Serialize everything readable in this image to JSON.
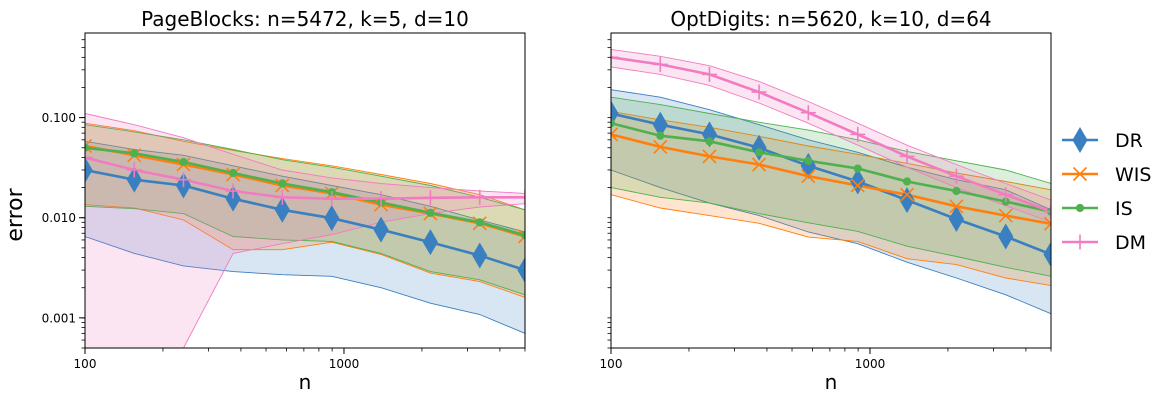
{
  "shared": {
    "ylabel": "error",
    "xlabel": "n"
  },
  "legend": {
    "placement": "right",
    "items": [
      {
        "name": "DR",
        "color": "#3a7fbf",
        "marker": "diamond"
      },
      {
        "name": "WIS",
        "color": "#ff7f0e",
        "marker": "x"
      },
      {
        "name": "IS",
        "color": "#4fb04f",
        "marker": "circle"
      },
      {
        "name": "DM",
        "color": "#f17cc2",
        "marker": "plus"
      }
    ]
  },
  "chart_data": [
    {
      "type": "line",
      "title": "PageBlocks: n=5472, k=5, d=10",
      "xlabel": "n",
      "ylabel": "error",
      "xscale": "log",
      "yscale": "log",
      "xlim": [
        100,
        5000
      ],
      "ylim": [
        0.0005,
        0.7
      ],
      "xticks": [
        {
          "value": 100,
          "label": "100"
        },
        {
          "value": 1000,
          "label": "1000"
        }
      ],
      "yticks": [
        {
          "value": 0.001,
          "label": "0.001"
        },
        {
          "value": 0.01,
          "label": "0.010"
        },
        {
          "value": 0.1,
          "label": "0.100"
        }
      ],
      "grid": false,
      "x": [
        100,
        155,
        240,
        373,
        578,
        897,
        1390,
        2156,
        3344,
        5000
      ],
      "series": [
        {
          "name": "DR",
          "color": "#3a7fbf",
          "marker": "diamond",
          "values": [
            0.03,
            0.024,
            0.021,
            0.0155,
            0.012,
            0.0099,
            0.0076,
            0.0057,
            0.0042,
            0.003
          ],
          "lower": [
            0.0065,
            0.0044,
            0.0033,
            0.0029,
            0.0027,
            0.0026,
            0.002,
            0.0014,
            0.00108,
            0.0007
          ],
          "upper": [
            0.058,
            0.048,
            0.042,
            0.033,
            0.026,
            0.021,
            0.017,
            0.013,
            0.0095,
            0.0072
          ]
        },
        {
          "name": "WIS",
          "color": "#ff7f0e",
          "marker": "x",
          "values": [
            0.052,
            0.042,
            0.034,
            0.027,
            0.021,
            0.0175,
            0.0135,
            0.011,
            0.0088,
            0.0065
          ],
          "lower": [
            0.0135,
            0.0125,
            0.0095,
            0.0048,
            0.0048,
            0.0057,
            0.0043,
            0.0028,
            0.0023,
            0.0016
          ],
          "upper": [
            0.088,
            0.074,
            0.058,
            0.047,
            0.039,
            0.033,
            0.027,
            0.022,
            0.017,
            0.012
          ]
        },
        {
          "name": "IS",
          "color": "#4fb04f",
          "marker": "circle",
          "values": [
            0.05,
            0.044,
            0.036,
            0.028,
            0.022,
            0.018,
            0.0142,
            0.0112,
            0.009,
            0.0067
          ],
          "lower": [
            0.013,
            0.0123,
            0.011,
            0.0065,
            0.006,
            0.0058,
            0.0044,
            0.0029,
            0.0024,
            0.0017
          ],
          "upper": [
            0.085,
            0.072,
            0.06,
            0.048,
            0.038,
            0.032,
            0.026,
            0.021,
            0.016,
            0.012
          ]
        },
        {
          "name": "DM",
          "color": "#f17cc2",
          "marker": "plus",
          "values": [
            0.04,
            0.03,
            0.024,
            0.0185,
            0.016,
            0.0155,
            0.0155,
            0.0158,
            0.016,
            0.016
          ],
          "lower": [
            0.0005,
            0.0005,
            0.0005,
            0.0044,
            0.0055,
            0.0068,
            0.009,
            0.011,
            0.0128,
            0.0138
          ],
          "upper": [
            0.11,
            0.085,
            0.063,
            0.043,
            0.03,
            0.025,
            0.022,
            0.02,
            0.0185,
            0.0175
          ]
        }
      ]
    },
    {
      "type": "line",
      "title": "OptDigits: n=5620, k=10, d=64",
      "xlabel": "n",
      "ylabel": "",
      "xscale": "log",
      "yscale": "log",
      "xlim": [
        100,
        5000
      ],
      "ylim": [
        0.0005,
        0.7
      ],
      "xticks": [
        {
          "value": 100,
          "label": "100"
        },
        {
          "value": 1000,
          "label": "1000"
        }
      ],
      "yticks": [],
      "grid": false,
      "x": [
        100,
        155,
        240,
        373,
        578,
        897,
        1390,
        2156,
        3344,
        5000
      ],
      "series": [
        {
          "name": "DR",
          "color": "#3a7fbf",
          "marker": "diamond",
          "values": [
            0.11,
            0.085,
            0.068,
            0.05,
            0.033,
            0.023,
            0.015,
            0.0097,
            0.0065,
            0.0043
          ],
          "lower": [
            0.03,
            0.02,
            0.014,
            0.0105,
            0.0072,
            0.0055,
            0.0036,
            0.0025,
            0.0017,
            0.0011
          ],
          "upper": [
            0.19,
            0.16,
            0.12,
            0.085,
            0.06,
            0.045,
            0.032,
            0.024,
            0.019,
            0.012
          ]
        },
        {
          "name": "WIS",
          "color": "#ff7f0e",
          "marker": "x",
          "values": [
            0.068,
            0.051,
            0.041,
            0.034,
            0.026,
            0.021,
            0.017,
            0.013,
            0.0105,
            0.0087
          ],
          "lower": [
            0.017,
            0.0125,
            0.0105,
            0.0088,
            0.0064,
            0.0058,
            0.0039,
            0.0034,
            0.0025,
            0.0021
          ],
          "upper": [
            0.115,
            0.095,
            0.08,
            0.065,
            0.052,
            0.043,
            0.035,
            0.028,
            0.023,
            0.019
          ]
        },
        {
          "name": "IS",
          "color": "#4fb04f",
          "marker": "circle",
          "values": [
            0.088,
            0.066,
            0.058,
            0.045,
            0.037,
            0.031,
            0.023,
            0.0185,
            0.0145,
            0.0115
          ],
          "lower": [
            0.02,
            0.016,
            0.014,
            0.011,
            0.0089,
            0.0073,
            0.0052,
            0.0041,
            0.0032,
            0.0026
          ],
          "upper": [
            0.16,
            0.135,
            0.11,
            0.09,
            0.075,
            0.06,
            0.046,
            0.037,
            0.03,
            0.022
          ]
        },
        {
          "name": "DM",
          "color": "#f17cc2",
          "marker": "plus",
          "values": [
            0.4,
            0.34,
            0.27,
            0.18,
            0.112,
            0.068,
            0.041,
            0.026,
            0.017,
            0.0115
          ],
          "lower": [
            0.32,
            0.27,
            0.21,
            0.14,
            0.088,
            0.053,
            0.032,
            0.02,
            0.0132,
            0.009
          ],
          "upper": [
            0.48,
            0.41,
            0.33,
            0.23,
            0.145,
            0.088,
            0.053,
            0.034,
            0.022,
            0.015
          ]
        }
      ]
    }
  ]
}
